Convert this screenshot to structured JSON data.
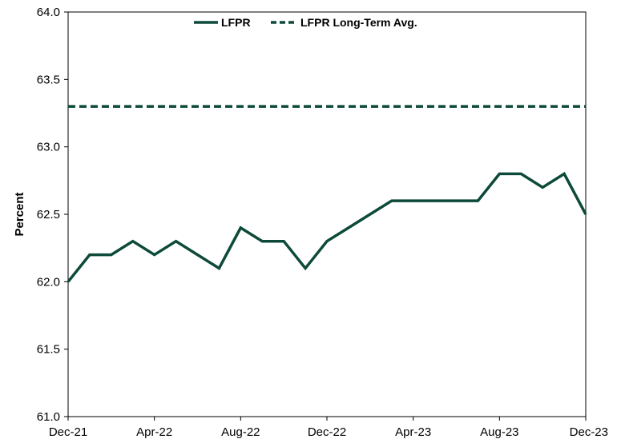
{
  "chart_data": {
    "type": "line",
    "title": "",
    "xlabel": "",
    "ylabel": "Percent",
    "ylim": [
      61.0,
      64.0
    ],
    "yticks": [
      "61.0",
      "61.5",
      "62.0",
      "62.5",
      "63.0",
      "63.5",
      "64.0"
    ],
    "x": [
      "Dec-21",
      "Jan-22",
      "Feb-22",
      "Mar-22",
      "Apr-22",
      "May-22",
      "Jun-22",
      "Jul-22",
      "Aug-22",
      "Sep-22",
      "Oct-22",
      "Nov-22",
      "Dec-22",
      "Jan-23",
      "Feb-23",
      "Mar-23",
      "Apr-23",
      "May-23",
      "Jun-23",
      "Jul-23",
      "Aug-23",
      "Sep-23",
      "Oct-23",
      "Nov-23",
      "Dec-23"
    ],
    "xtick_labels": [
      "Dec-21",
      "Apr-22",
      "Aug-22",
      "Dec-22",
      "Apr-23",
      "Aug-23",
      "Dec-23"
    ],
    "grid": false,
    "legend_position": "top",
    "series": [
      {
        "name": "LFPR",
        "style": "solid",
        "color": "#0d4a3a",
        "values": [
          62.0,
          62.2,
          62.2,
          62.3,
          62.2,
          62.3,
          62.2,
          62.1,
          62.4,
          62.3,
          62.3,
          62.1,
          62.3,
          62.4,
          62.5,
          62.6,
          62.6,
          62.6,
          62.6,
          62.6,
          62.8,
          62.8,
          62.7,
          62.8,
          62.5
        ]
      },
      {
        "name": "LFPR Long-Term Avg.",
        "style": "dashed",
        "color": "#0d4a3a",
        "values": [
          63.3,
          63.3,
          63.3,
          63.3,
          63.3,
          63.3,
          63.3,
          63.3,
          63.3,
          63.3,
          63.3,
          63.3,
          63.3,
          63.3,
          63.3,
          63.3,
          63.3,
          63.3,
          63.3,
          63.3,
          63.3,
          63.3,
          63.3,
          63.3,
          63.3
        ]
      }
    ]
  }
}
